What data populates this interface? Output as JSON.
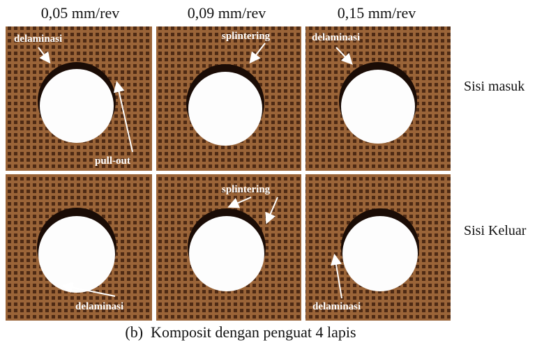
{
  "columns": [
    "0,05 mm/rev",
    "0,09 mm/rev",
    "0,15 mm/rev"
  ],
  "rows": [
    {
      "label": "Sisi masuk",
      "panels": [
        {
          "annotations": [
            "delaminasi",
            "pull-out"
          ]
        },
        {
          "annotations": [
            "splintering"
          ]
        },
        {
          "annotations": [
            "delaminasi"
          ]
        }
      ]
    },
    {
      "label": "Sisi Keluar",
      "panels": [
        {
          "annotations": [
            "delaminasi"
          ]
        },
        {
          "annotations": [
            "splintering"
          ]
        },
        {
          "annotations": [
            "delaminasi"
          ]
        }
      ]
    }
  ],
  "caption": "(b)  Komposit dengan penguat 4 lapis"
}
